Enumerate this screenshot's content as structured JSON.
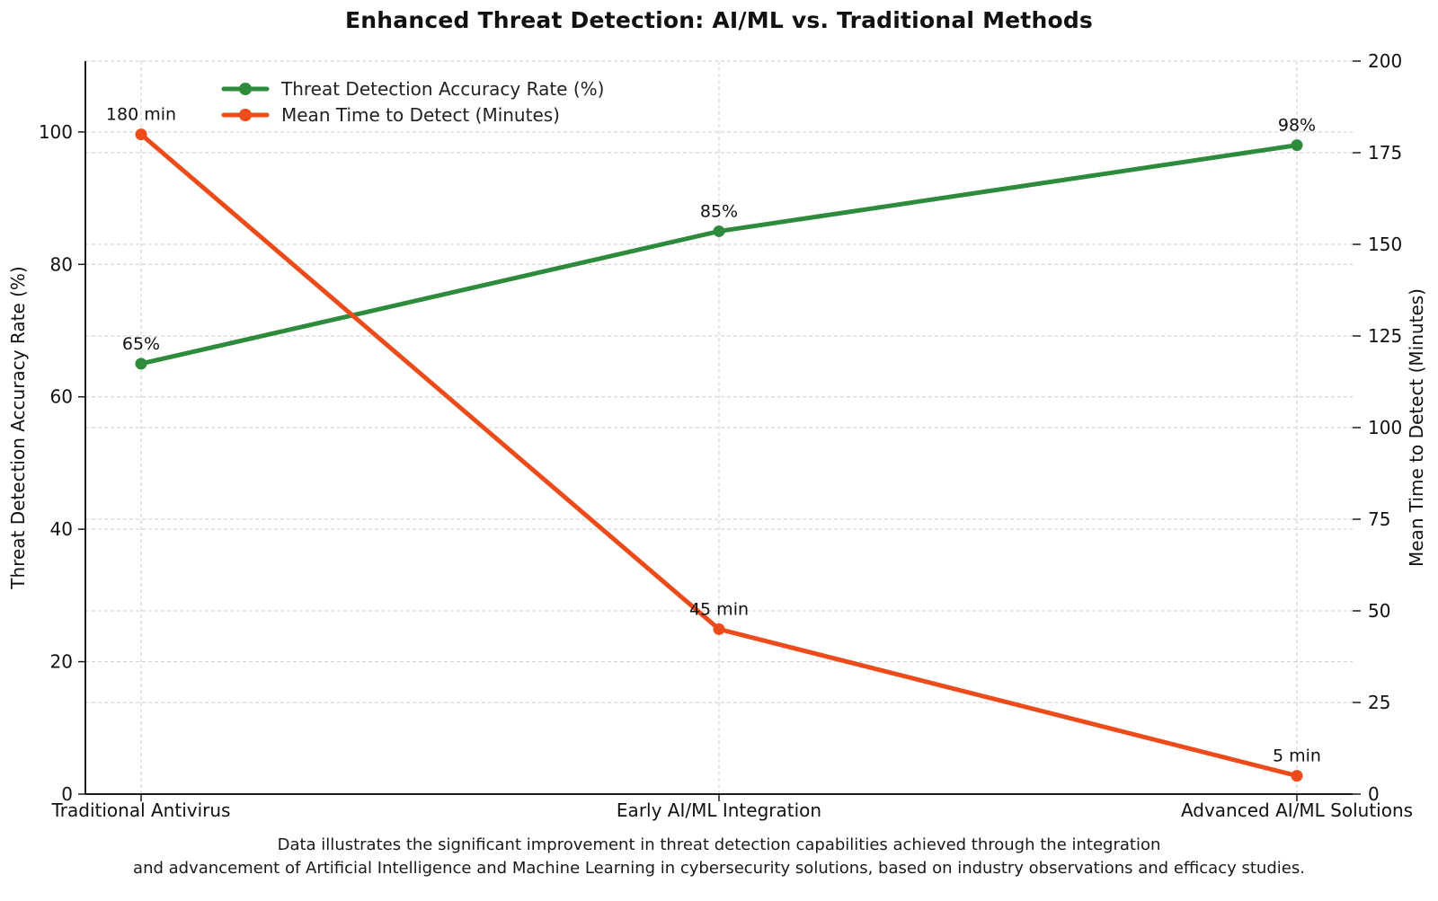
{
  "title": "Enhanced Threat Detection: AI/ML vs. Traditional Methods",
  "caption": {
    "line1": "Data illustrates the significant improvement in threat detection capabilities achieved through the integration",
    "line2": "and advancement of Artificial Intelligence and Machine Learning in cybersecurity solutions, based on industry observations and efficacy studies."
  },
  "colors": {
    "accuracy_green": "#2e8b3c",
    "mttd_orange": "#ee4b1b",
    "grid_gray": "#cccccc",
    "spine_dark": "#1a1a1a",
    "text_dark": "#111111"
  },
  "chart_data": {
    "type": "line",
    "title": "Enhanced Threat Detection: AI/ML vs. Traditional Methods",
    "categories": [
      "Traditional Antivirus",
      "Early AI/ML Integration",
      "Advanced AI/ML Solutions"
    ],
    "series": [
      {
        "name": "Threat Detection Accuracy Rate (%)",
        "axis": "left",
        "color": "#2e8b3c",
        "values": [
          65,
          85,
          98
        ],
        "point_labels": [
          "65%",
          "85%",
          "98%"
        ]
      },
      {
        "name": "Mean Time to Detect (Minutes)",
        "axis": "right",
        "color": "#ee4b1b",
        "values": [
          180,
          45,
          5
        ],
        "point_labels": [
          "180 min",
          "45 min",
          "5 min"
        ]
      }
    ],
    "left_axis": {
      "label": "Threat Detection Accuracy Rate (%)",
      "ticks": [
        0,
        20,
        40,
        60,
        80,
        100
      ],
      "ylim": [
        0,
        110.7
      ]
    },
    "right_axis": {
      "label": "Mean Time to Detect (Minutes)",
      "ticks": [
        0,
        25,
        50,
        75,
        100,
        125,
        150,
        175,
        200
      ],
      "ylim": [
        0,
        200
      ]
    },
    "grid": true,
    "legend_position": "upper left inside, no frame"
  }
}
